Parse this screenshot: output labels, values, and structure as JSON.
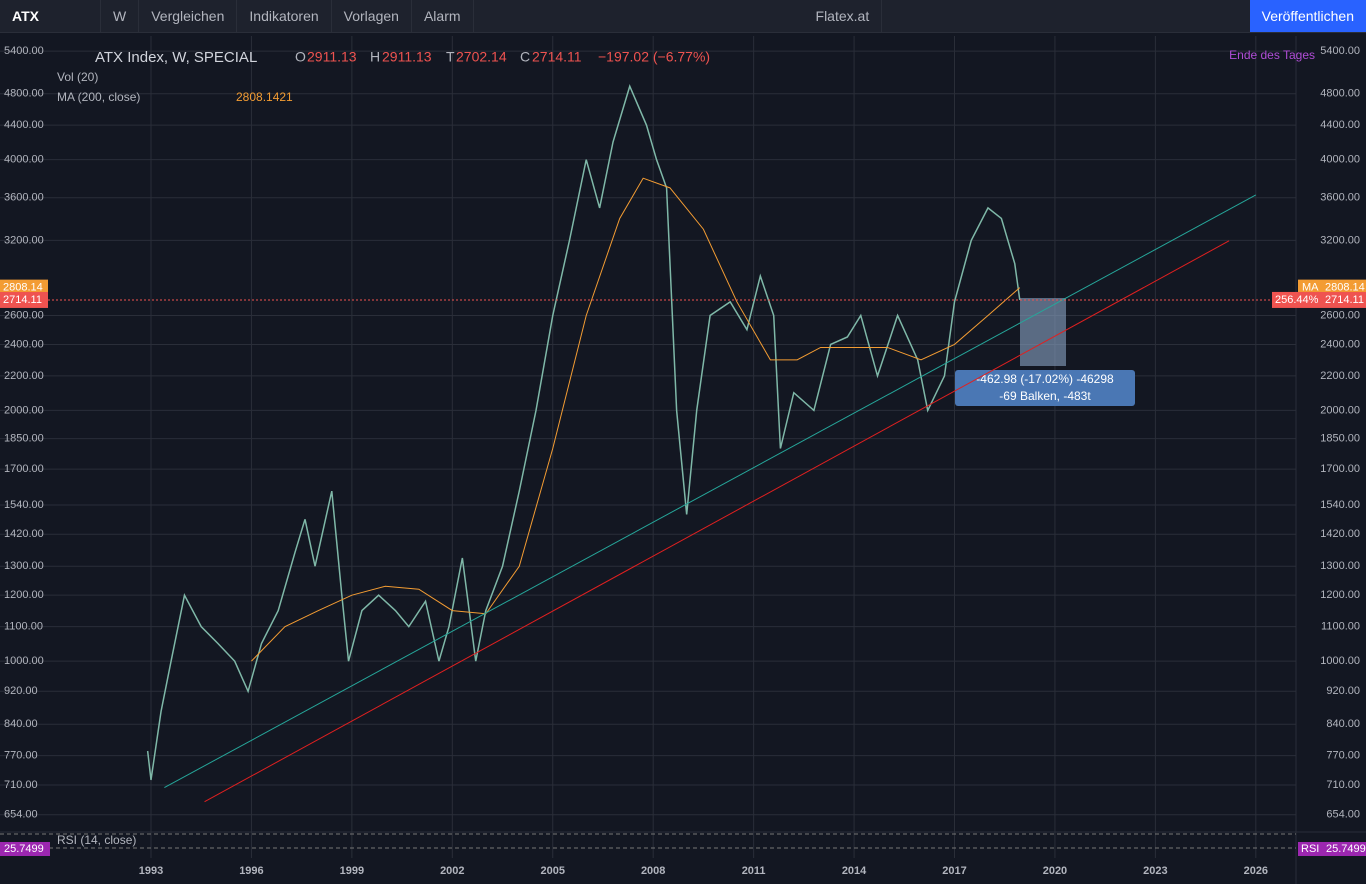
{
  "toolbar": {
    "symbol": "ATX",
    "interval": "W",
    "compare": "Vergleichen",
    "indicators": "Indikatoren",
    "templates": "Vorlagen",
    "alarm": "Alarm",
    "broker": "Flatex.at",
    "publish": "Veröffentlichen"
  },
  "legend": {
    "title": "ATX Index, W, SPECIAL",
    "open_label": "O",
    "open": 2911.13,
    "high_label": "H",
    "high": 2911.13,
    "low_label": "T",
    "low": 2702.14,
    "close_label": "C",
    "close": 2714.11,
    "change": "−197.02 (−6.77%)",
    "volume": "Vol (20)",
    "ma": "MA (200, close)",
    "ma_value": 2808.1421,
    "session": "Ende des Tages"
  },
  "measure": {
    "line1": "-462.98 (-17.02%) -46298",
    "line2": "-69 Balken, -483t"
  },
  "rsi": {
    "label": "RSI (14, close)",
    "value": "25.7499",
    "tag": "RSI"
  },
  "price_tags": {
    "ma_tag": "MA",
    "ma": 2808.14,
    "percent": "256.44%",
    "close": 2714.11
  },
  "chart_data": {
    "type": "line",
    "log_scale": true,
    "grid": true,
    "xlim": [
      1988.49,
      2027.2
    ],
    "ylim": [
      627,
      5630
    ],
    "xticks": [
      1993,
      1996,
      1999,
      2002,
      2005,
      2008,
      2011,
      2014,
      2017,
      2020,
      2023,
      2026
    ],
    "yticks": [
      {
        "value": 654,
        "label": "654.00"
      },
      {
        "value": 710,
        "label": "710.00"
      },
      {
        "value": 770,
        "label": "770.00"
      },
      {
        "value": 840,
        "label": "840.00"
      },
      {
        "value": 920,
        "label": "920.00"
      },
      {
        "value": 1000,
        "label": "1000.00"
      },
      {
        "value": 1100,
        "label": "1100.00"
      },
      {
        "value": 1200,
        "label": "1200.00"
      },
      {
        "value": 1300,
        "label": "1300.00"
      },
      {
        "value": 1420,
        "label": "1420.00"
      },
      {
        "value": 1540,
        "label": "1540.00"
      },
      {
        "value": 1700,
        "label": "1700.00"
      },
      {
        "value": 1850,
        "label": "1850.00"
      },
      {
        "value": 2000,
        "label": "2000.00"
      },
      {
        "value": 2200,
        "label": "2200.00"
      },
      {
        "value": 2400,
        "label": "2400.00"
      },
      {
        "value": 2600,
        "label": "2600.00"
      },
      {
        "value": 3200,
        "label": "3200.00"
      },
      {
        "value": 3600,
        "label": "3600.00"
      },
      {
        "value": 4000,
        "label": "4000.00"
      },
      {
        "value": 4400,
        "label": "4400.00"
      },
      {
        "value": 4800,
        "label": "4800.00"
      },
      {
        "value": 5400,
        "label": "5400.00"
      }
    ],
    "series": [
      {
        "color": "#7fb8a8",
        "x": [
          1992.9,
          1993.0,
          1993.3,
          1993.6,
          1994.0,
          1994.5,
          1995.0,
          1995.5,
          1995.9,
          1996.3,
          1996.8,
          1997.3,
          1997.6,
          1997.9,
          1998.4,
          1998.7,
          1998.9,
          1999.3,
          1999.8,
          2000.3,
          2000.7,
          2001.2,
          2001.6,
          2001.9,
          2002.3,
          2002.7,
          2003.0,
          2003.5,
          2004.0,
          2004.5,
          2005.0,
          2005.5,
          2006.0,
          2006.4,
          2006.8,
          2007.3,
          2007.8,
          2008.1,
          2008.4,
          2008.7,
          2009.0,
          2009.3,
          2009.7,
          2010.3,
          2010.8,
          2011.2,
          2011.6,
          2011.8,
          2012.2,
          2012.8,
          2013.3,
          2013.8,
          2014.2,
          2014.7,
          2015.3,
          2015.9,
          2016.2,
          2016.7,
          2017.0,
          2017.5,
          2018.0,
          2018.4,
          2018.8,
          2018.95
        ],
        "values": [
          780,
          720,
          870,
          1000,
          1200,
          1100,
          1050,
          1000,
          920,
          1050,
          1150,
          1350,
          1480,
          1300,
          1600,
          1200,
          1000,
          1150,
          1200,
          1150,
          1100,
          1180,
          1000,
          1100,
          1330,
          1000,
          1150,
          1300,
          1600,
          2000,
          2600,
          3200,
          4000,
          3500,
          4200,
          4900,
          4400,
          4000,
          3700,
          2000,
          1500,
          2000,
          2600,
          2700,
          2500,
          2900,
          2600,
          1800,
          2100,
          2000,
          2400,
          2450,
          2600,
          2200,
          2600,
          2300,
          2000,
          2200,
          2700,
          3200,
          3500,
          3400,
          3000,
          2714
        ]
      },
      {
        "color": "#f39c33",
        "x": [
          1996,
          1997,
          1998,
          1999,
          2000,
          2001,
          2002,
          2003,
          2004,
          2005,
          2006,
          2007,
          2007.7,
          2008.5,
          2009.5,
          2010.5,
          2011.5,
          2012.3,
          2013,
          2014,
          2015,
          2016,
          2017,
          2018,
          2018.95
        ],
        "values": [
          1000,
          1100,
          1150,
          1200,
          1230,
          1220,
          1150,
          1140,
          1300,
          1800,
          2600,
          3400,
          3800,
          3700,
          3300,
          2700,
          2300,
          2300,
          2380,
          2380,
          2380,
          2300,
          2400,
          2600,
          2808
        ]
      },
      {
        "color": "#26a69a",
        "x": [
          1993.4,
          2026
        ],
        "values": [
          705,
          3628
        ]
      },
      {
        "color": "#e02020",
        "x": [
          1994.6,
          2025.2
        ],
        "values": [
          678,
          3196
        ]
      }
    ]
  }
}
